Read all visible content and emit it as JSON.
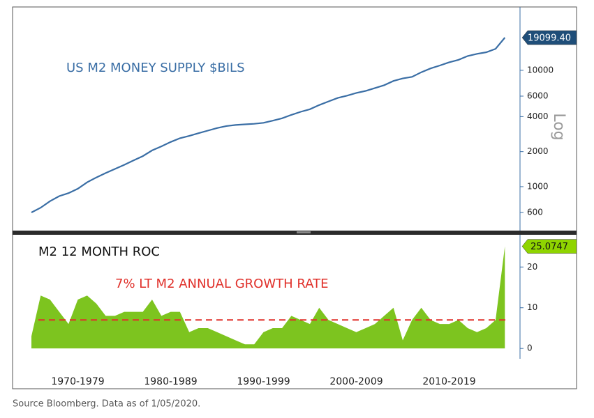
{
  "chart_data": [
    {
      "type": "line",
      "title": "US M2 MONEY SUPPLY  $BILS",
      "y_label": "Log",
      "log_scale": true,
      "color": "#3a6ea5",
      "values": [
        600,
        660,
        750,
        830,
        880,
        960,
        1090,
        1200,
        1310,
        1420,
        1540,
        1680,
        1830,
        2050,
        2220,
        2420,
        2610,
        2730,
        2880,
        3030,
        3190,
        3320,
        3390,
        3430,
        3470,
        3540,
        3690,
        3870,
        4140,
        4400,
        4630,
        5030,
        5400,
        5790,
        6060,
        6390,
        6650,
        7040,
        7450,
        8100,
        8510,
        8790,
        9620,
        10390,
        11000,
        11720,
        12300,
        13280,
        13850,
        14300,
        15300,
        19099.4
      ],
      "value_labels": [
        null,
        null,
        null,
        null,
        null,
        null,
        null,
        null,
        null,
        null,
        null,
        null,
        null,
        null,
        null,
        null,
        null,
        null,
        null,
        null,
        null,
        null,
        null,
        null,
        null,
        null,
        null,
        null,
        null,
        null,
        null,
        null,
        null,
        null,
        null,
        null,
        null,
        null,
        null,
        null,
        null,
        null,
        null,
        null,
        null,
        null,
        null,
        null,
        null,
        null,
        null,
        "19099.40"
      ],
      "ylim": [
        425,
        32700
      ],
      "yticks": [
        600,
        1000,
        2000,
        4000,
        6000,
        10000
      ]
    },
    {
      "type": "area",
      "title": "M2 12 MONTH ROC",
      "color": "#7dc41f",
      "categories": [
        null,
        null,
        null,
        null,
        null,
        "1970-1979",
        null,
        null,
        null,
        null,
        null,
        null,
        null,
        null,
        null,
        "1980-1989",
        null,
        null,
        null,
        null,
        null,
        null,
        null,
        null,
        null,
        "1990-1999",
        null,
        null,
        null,
        null,
        null,
        null,
        null,
        null,
        null,
        "2000-2009",
        null,
        null,
        null,
        null,
        null,
        null,
        null,
        null,
        null,
        "2010-2019",
        null,
        null,
        null,
        null,
        null,
        null
      ],
      "values": [
        3,
        13,
        12,
        9,
        6,
        12,
        13,
        11,
        8,
        8,
        9,
        9,
        9,
        12,
        8,
        9,
        9,
        4,
        5,
        5,
        4,
        3,
        2,
        1,
        1,
        4,
        5,
        5,
        8,
        7,
        6,
        10,
        7,
        6,
        5,
        4,
        5,
        6,
        8,
        10,
        2,
        7,
        10,
        7,
        6,
        6,
        7,
        5,
        4,
        5,
        7,
        25.0747
      ],
      "ylim": [
        -5.1,
        27.4
      ],
      "yticks": [
        0,
        10,
        20
      ],
      "reference_line": {
        "value": 7,
        "label": "7% LT M2 ANNUAL GROWTH RATE",
        "color": "#e0302a"
      }
    }
  ],
  "source": "Source Bloomberg. Data as of 1/05/2020."
}
